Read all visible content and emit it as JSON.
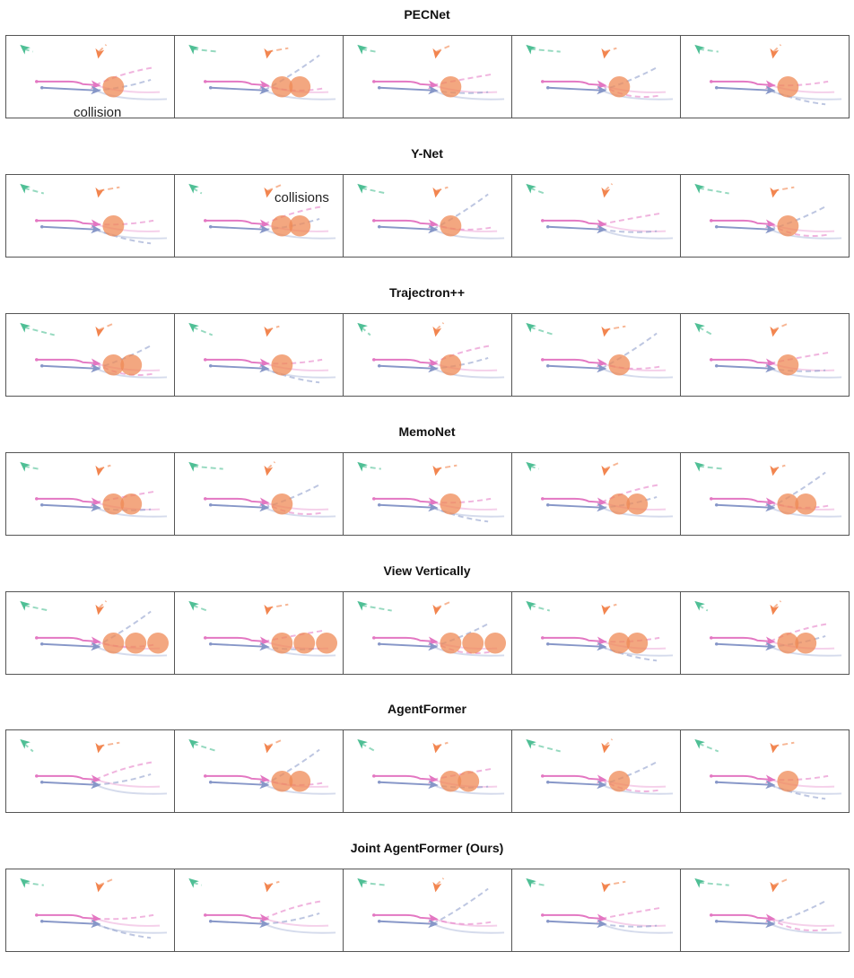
{
  "figure": {
    "colors": {
      "pink_agent": "#e377c2",
      "blue_agent": "#8797c8",
      "orange_agent": "#f2854f",
      "green_agent": "#4fbf95",
      "collision": "#ef8a55",
      "frame": "#555555"
    },
    "icons": [
      "arrow-head-icon"
    ],
    "rows": [
      {
        "title": "PECNet",
        "collisions_per_panel": [
          1,
          2,
          1,
          1,
          1
        ],
        "annotation": "collision"
      },
      {
        "title": "Y-Net",
        "collisions_per_panel": [
          1,
          2,
          1,
          0,
          1
        ],
        "annotation": "collisions"
      },
      {
        "title": "Trajectron++",
        "collisions_per_panel": [
          2,
          1,
          1,
          1,
          1
        ],
        "annotation": ""
      },
      {
        "title": "MemoNet",
        "collisions_per_panel": [
          2,
          1,
          1,
          2,
          2
        ],
        "annotation": ""
      },
      {
        "title": "View Vertically",
        "collisions_per_panel": [
          3,
          3,
          3,
          2,
          2
        ],
        "annotation": ""
      },
      {
        "title": "AgentFormer",
        "collisions_per_panel": [
          0,
          2,
          2,
          1,
          1
        ],
        "annotation": ""
      },
      {
        "title": "Joint AgentFormer (Ours)",
        "collisions_per_panel": [
          0,
          0,
          0,
          0,
          0
        ],
        "annotation": ""
      }
    ]
  }
}
